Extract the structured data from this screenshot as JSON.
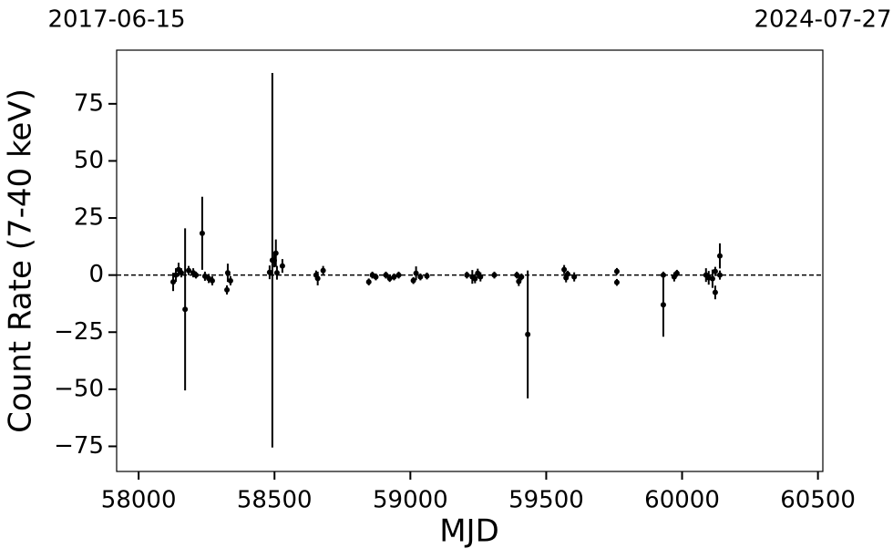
{
  "chart_data": {
    "type": "scatter",
    "x_label": "MJD",
    "y_label": "Count Rate (7-40 keV)",
    "color": "#000000",
    "reference_line": 0,
    "xlim": [
      57919,
      60518
    ],
    "ylim": [
      -86,
      98.5
    ],
    "xticks": [
      58000,
      58500,
      59000,
      59500,
      60000,
      60500
    ],
    "yticks": [
      {
        "value": -75,
        "label": "−75"
      },
      {
        "value": -50,
        "label": "−50"
      },
      {
        "value": -25,
        "label": "−25"
      },
      0,
      25,
      50,
      75
    ],
    "top_xticks": [
      {
        "value": 57919,
        "label": "2017-06-15"
      },
      {
        "value": 60518,
        "label": "2024-07-27"
      }
    ],
    "x": [
      58127,
      58137,
      58147,
      58157,
      58171,
      58184,
      58201,
      58211,
      58234,
      58244,
      58258,
      58271,
      58325,
      58328,
      58338,
      58482,
      58492,
      58499,
      58505,
      58509,
      58529,
      58653,
      58659,
      58679,
      58847,
      58860,
      58873,
      58910,
      58924,
      58940,
      58957,
      59011,
      59021,
      59037,
      59061,
      59208,
      59228,
      59238,
      59248,
      59258,
      59309,
      59392,
      59399,
      59409,
      59432,
      59566,
      59573,
      59579,
      59603,
      59760,
      59760,
      59931,
      59931,
      59971,
      59981,
      60088,
      60098,
      60112,
      60122,
      60122,
      60139,
      60139
    ],
    "values": [
      -3,
      0,
      2.4,
      1,
      -15,
      2,
      1,
      0,
      18.3,
      -0.5,
      -1.5,
      -2.5,
      -6.5,
      1,
      -2.5,
      1.2,
      6.5,
      6.4,
      9.6,
      1,
      4,
      0,
      -1.5,
      2,
      -3,
      0,
      -0.8,
      0,
      -1.5,
      -0.8,
      0,
      -2.4,
      0.8,
      -0.8,
      -0.4,
      0,
      -0.8,
      -1.6,
      0.8,
      -0.8,
      0,
      0,
      -2.8,
      -0.8,
      -26,
      2.4,
      -1.2,
      0.4,
      -0.8,
      1.6,
      -3.2,
      0,
      -13,
      -0.8,
      0.8,
      0,
      -1.2,
      -1.6,
      1.6,
      -7.6,
      0,
      8.4
    ],
    "errors": [
      4,
      3,
      3,
      2,
      35.5,
      2,
      2,
      1.5,
      16,
      2,
      2,
      2,
      2,
      4,
      2,
      3,
      82,
      3,
      6,
      3,
      3,
      2,
      3,
      2,
      1.5,
      1.5,
      1.5,
      1.5,
      1.5,
      1.5,
      1.5,
      1.5,
      3,
      1.5,
      1.5,
      1.5,
      3,
      2,
      2,
      2,
      1.5,
      1.5,
      2,
      1.5,
      28,
      2,
      2,
      1.5,
      2,
      1.5,
      1.5,
      1.5,
      14,
      2,
      1.5,
      3,
      3,
      4,
      2,
      3,
      2,
      5.5
    ]
  }
}
